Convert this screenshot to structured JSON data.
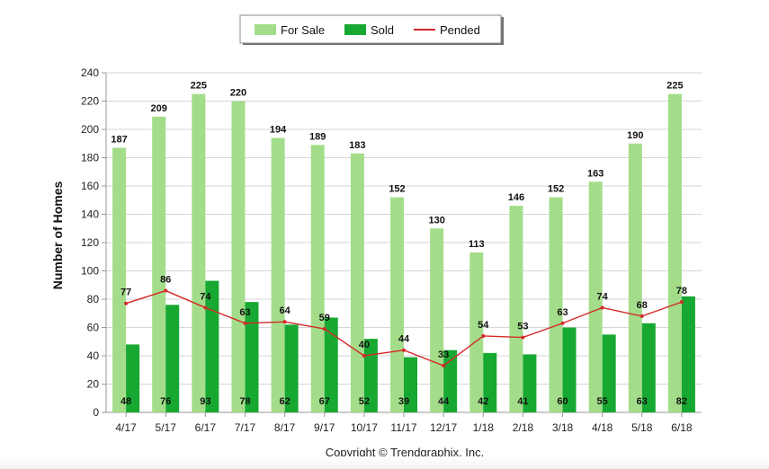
{
  "chart_data": {
    "type": "bar",
    "categories": [
      "4/17",
      "5/17",
      "6/17",
      "7/17",
      "8/17",
      "9/17",
      "10/17",
      "11/17",
      "12/17",
      "1/18",
      "2/18",
      "3/18",
      "4/18",
      "5/18",
      "6/18"
    ],
    "series": [
      {
        "name": "For Sale",
        "kind": "bar",
        "color": "#a3dd8a",
        "values": [
          187,
          209,
          225,
          220,
          194,
          189,
          183,
          152,
          130,
          113,
          146,
          152,
          163,
          190,
          225
        ]
      },
      {
        "name": "Sold",
        "kind": "bar",
        "color": "#17a832",
        "values": [
          48,
          76,
          93,
          78,
          62,
          67,
          52,
          39,
          44,
          42,
          41,
          60,
          55,
          63,
          82
        ]
      },
      {
        "name": "Pended",
        "kind": "line",
        "color": "#d42a2a",
        "values": [
          77,
          86,
          74,
          63,
          64,
          59,
          40,
          44,
          33,
          54,
          53,
          63,
          74,
          68,
          78
        ]
      }
    ],
    "ylabel": "Number of Homes",
    "xlabel": "",
    "ylim": [
      0,
      240
    ],
    "yticks": [
      0,
      20,
      40,
      60,
      80,
      100,
      120,
      140,
      160,
      180,
      200,
      220,
      240
    ],
    "grid": true,
    "legend_position": "top-center"
  },
  "footer": {
    "copyright": "Copyright © Trendgraphix, Inc."
  }
}
